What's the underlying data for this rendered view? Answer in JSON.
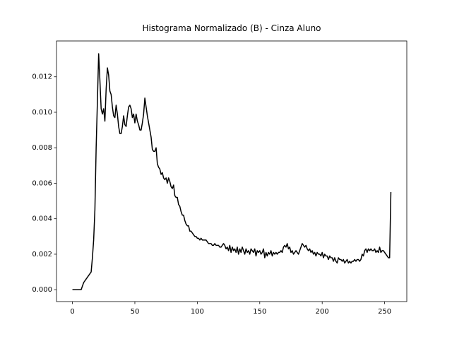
{
  "chart_data": {
    "type": "line",
    "title": "Histograma Normalizado (B) - Cinza Aluno",
    "x": [
      0,
      1,
      2,
      3,
      4,
      5,
      6,
      7,
      8,
      9,
      10,
      11,
      12,
      13,
      14,
      15,
      16,
      17,
      18,
      19,
      20,
      21,
      22,
      23,
      24,
      25,
      26,
      27,
      28,
      29,
      30,
      31,
      32,
      33,
      34,
      35,
      36,
      37,
      38,
      39,
      40,
      41,
      42,
      43,
      44,
      45,
      46,
      47,
      48,
      49,
      50,
      51,
      52,
      53,
      54,
      55,
      56,
      57,
      58,
      59,
      60,
      61,
      62,
      63,
      64,
      65,
      66,
      67,
      68,
      69,
      70,
      71,
      72,
      73,
      74,
      75,
      76,
      77,
      78,
      79,
      80,
      81,
      82,
      83,
      84,
      85,
      86,
      87,
      88,
      89,
      90,
      91,
      92,
      93,
      94,
      95,
      96,
      97,
      98,
      99,
      100,
      101,
      102,
      103,
      104,
      105,
      106,
      107,
      108,
      109,
      110,
      111,
      112,
      113,
      114,
      115,
      116,
      117,
      118,
      119,
      120,
      121,
      122,
      123,
      124,
      125,
      126,
      127,
      128,
      129,
      130,
      131,
      132,
      133,
      134,
      135,
      136,
      137,
      138,
      139,
      140,
      141,
      142,
      143,
      144,
      145,
      146,
      147,
      148,
      149,
      150,
      151,
      152,
      153,
      154,
      155,
      156,
      157,
      158,
      159,
      160,
      161,
      162,
      163,
      164,
      165,
      166,
      167,
      168,
      169,
      170,
      171,
      172,
      173,
      174,
      175,
      176,
      177,
      178,
      179,
      180,
      181,
      182,
      183,
      184,
      185,
      186,
      187,
      188,
      189,
      190,
      191,
      192,
      193,
      194,
      195,
      196,
      197,
      198,
      199,
      200,
      201,
      202,
      203,
      204,
      205,
      206,
      207,
      208,
      209,
      210,
      211,
      212,
      213,
      214,
      215,
      216,
      217,
      218,
      219,
      220,
      221,
      222,
      223,
      224,
      225,
      226,
      227,
      228,
      229,
      230,
      231,
      232,
      233,
      234,
      235,
      236,
      237,
      238,
      239,
      240,
      241,
      242,
      243,
      244,
      245,
      246,
      247,
      248,
      249,
      250,
      251,
      252,
      253,
      254,
      255
    ],
    "series": [
      {
        "color": "#000000",
        "values": [
          0,
          0,
          0,
          0,
          0,
          0,
          0,
          0,
          0.0002,
          0.0004,
          0.0005,
          0.0006,
          0.0007,
          0.0008,
          0.0009,
          0.001,
          0.0018,
          0.0028,
          0.0045,
          0.008,
          0.0106,
          0.0133,
          0.0118,
          0.0102,
          0.0099,
          0.0102,
          0.0095,
          0.0113,
          0.0125,
          0.0121,
          0.0112,
          0.011,
          0.0103,
          0.0098,
          0.0097,
          0.0104,
          0.0099,
          0.0092,
          0.0088,
          0.0088,
          0.0092,
          0.0098,
          0.0093,
          0.0092,
          0.0098,
          0.0103,
          0.0104,
          0.0102,
          0.0097,
          0.0099,
          0.0094,
          0.0099,
          0.0095,
          0.0093,
          0.009,
          0.009,
          0.0094,
          0.0099,
          0.0108,
          0.0103,
          0.0098,
          0.0094,
          0.009,
          0.0086,
          0.0079,
          0.0078,
          0.0078,
          0.008,
          0.0071,
          0.0069,
          0.0068,
          0.0065,
          0.0066,
          0.0063,
          0.0062,
          0.0063,
          0.006,
          0.0063,
          0.0061,
          0.0058,
          0.0057,
          0.0059,
          0.0053,
          0.0052,
          0.0052,
          0.0048,
          0.0047,
          0.0044,
          0.0042,
          0.0042,
          0.0039,
          0.0037,
          0.0036,
          0.0036,
          0.0033,
          0.0033,
          0.0032,
          0.0031,
          0.003,
          0.003,
          0.0029,
          0.0029,
          0.0028,
          0.0029,
          0.0028,
          0.0028,
          0.0028,
          0.0028,
          0.0027,
          0.0026,
          0.0026,
          0.0026,
          0.0025,
          0.0025,
          0.0026,
          0.0025,
          0.0025,
          0.0025,
          0.0024,
          0.0024,
          0.0025,
          0.0026,
          0.0025,
          0.0023,
          0.0024,
          0.0022,
          0.0025,
          0.0021,
          0.0024,
          0.0022,
          0.0023,
          0.0021,
          0.0024,
          0.002,
          0.0023,
          0.0021,
          0.0024,
          0.0022,
          0.002,
          0.0023,
          0.0021,
          0.0022,
          0.002,
          0.0023,
          0.0022,
          0.0021,
          0.0023,
          0.0019,
          0.0022,
          0.0021,
          0.0022,
          0.002,
          0.0021,
          0.0023,
          0.0018,
          0.0021,
          0.0019,
          0.0021,
          0.002,
          0.0022,
          0.0019,
          0.0021,
          0.002,
          0.0021,
          0.002,
          0.0021,
          0.0021,
          0.0022,
          0.0021,
          0.0024,
          0.0025,
          0.0024,
          0.0026,
          0.0023,
          0.0024,
          0.0021,
          0.0022,
          0.002,
          0.0021,
          0.0022,
          0.0021,
          0.002,
          0.0022,
          0.0024,
          0.0026,
          0.0025,
          0.0024,
          0.0025,
          0.0023,
          0.0022,
          0.0023,
          0.0021,
          0.0022,
          0.002,
          0.0021,
          0.0019,
          0.0021,
          0.002,
          0.002,
          0.0019,
          0.0021,
          0.0018,
          0.002,
          0.0019,
          0.0019,
          0.0017,
          0.0019,
          0.0018,
          0.0018,
          0.0016,
          0.0018,
          0.0016,
          0.0015,
          0.0018,
          0.0017,
          0.0017,
          0.0016,
          0.0017,
          0.0015,
          0.0016,
          0.0017,
          0.0015,
          0.0016,
          0.0015,
          0.0016,
          0.0016,
          0.0017,
          0.0016,
          0.0017,
          0.0017,
          0.0016,
          0.0017,
          0.002,
          0.0019,
          0.0022,
          0.0023,
          0.0021,
          0.0023,
          0.0022,
          0.0023,
          0.0022,
          0.0022,
          0.0023,
          0.0021,
          0.0022,
          0.0021,
          0.0024,
          0.0021,
          0.0022,
          0.0022,
          0.0021,
          0.002,
          0.0019,
          0.0018,
          0.0018,
          0.0055
        ]
      }
    ],
    "xlim": [
      -12.75,
      267.75
    ],
    "xticks": [
      0,
      50,
      100,
      150,
      200,
      250
    ],
    "ylim": [
      -0.00067,
      0.01402
    ],
    "yticks": [
      {
        "value": 0,
        "label": "0.000"
      },
      {
        "value": 0.002,
        "label": "0.002"
      },
      {
        "value": 0.004,
        "label": "0.004"
      },
      {
        "value": 0.006,
        "label": "0.006"
      },
      {
        "value": 0.008,
        "label": "0.008"
      },
      {
        "value": 0.01,
        "label": "0.010"
      },
      {
        "value": 0.012,
        "label": "0.012"
      }
    ],
    "grid": false
  }
}
